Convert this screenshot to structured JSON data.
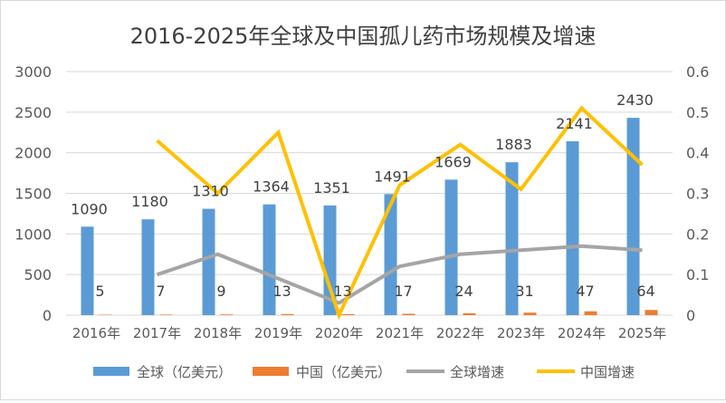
{
  "chart_data": {
    "type": "bar",
    "title": "2016-2025年全球及中国孤儿药市场规模及增速",
    "categories": [
      "2016年",
      "2017年",
      "2018年",
      "2019年",
      "2020年",
      "2021年",
      "2022年",
      "2023年",
      "2024年",
      "2025年"
    ],
    "ylim": [
      0,
      3000
    ],
    "yticks": [
      0,
      500,
      1000,
      1500,
      2000,
      2500,
      3000
    ],
    "y2lim": [
      0,
      0.6
    ],
    "y2ticks": [
      0,
      0.1,
      0.2,
      0.3,
      0.4,
      0.5,
      0.6
    ],
    "grid": true,
    "legend_position": "bottom",
    "series": [
      {
        "name": "全球（亿美元）",
        "kind": "bar",
        "axis": "left",
        "color": "#5b9bd5",
        "values": [
          1090,
          1180,
          1310,
          1364,
          1351,
          1491,
          1669,
          1883,
          2141,
          2430
        ]
      },
      {
        "name": "中国（亿美元）",
        "kind": "bar",
        "axis": "left",
        "color": "#ed7d31",
        "values": [
          5,
          7,
          9,
          13,
          13,
          17,
          24,
          31,
          47,
          64
        ]
      },
      {
        "name": "全球增速",
        "kind": "line",
        "axis": "right",
        "color": "#a5a5a5",
        "values": [
          null,
          0.1,
          0.15,
          0.09,
          0.03,
          0.12,
          0.15,
          0.16,
          0.17,
          0.16
        ]
      },
      {
        "name": "中国增速",
        "kind": "line",
        "axis": "right",
        "color": "#ffc000",
        "values": [
          null,
          0.43,
          0.3,
          0.45,
          0.0,
          0.32,
          0.42,
          0.31,
          0.51,
          0.37
        ]
      }
    ]
  }
}
